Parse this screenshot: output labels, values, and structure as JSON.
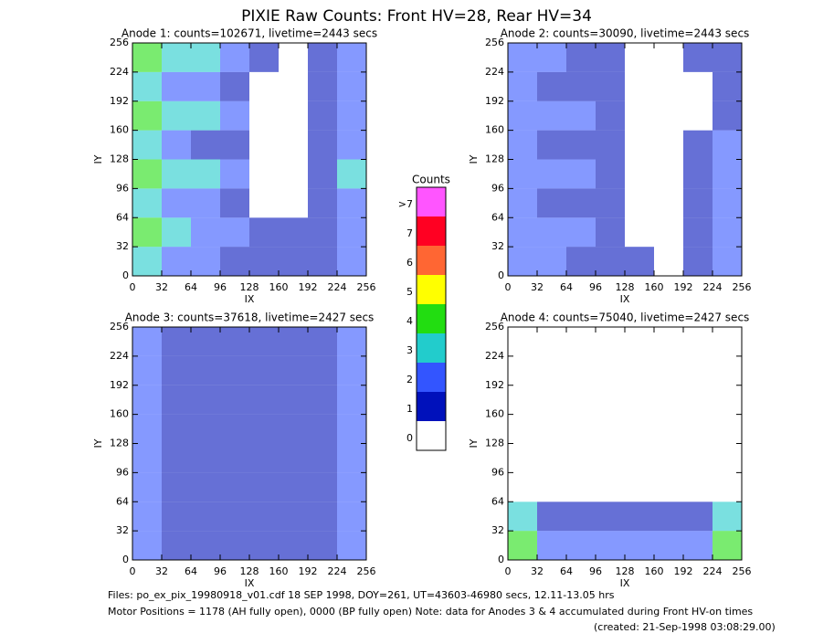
{
  "title": "PIXIE Raw Counts:  Front HV=28, Rear HV=34",
  "colorbar": {
    "title": "Counts",
    "labels": [
      "0",
      "1",
      "2",
      "3",
      "4",
      "5",
      "6",
      "7",
      ">7"
    ],
    "colors": [
      "#ffffff",
      "#0011bb",
      "#3355ff",
      "#22cccc",
      "#22dd11",
      "#ffff00",
      "#ff6633",
      "#ff0022",
      "#ff55ff"
    ]
  },
  "footer": {
    "files": "Files: po_ex_pix_19980918_v01.cdf    18 SEP 1998, DOY=261, UT=43603-46980 secs, 12.11-13.05 hrs",
    "motor": "Motor Positions = 1178 (AH fully open), 0000 (BP fully open)    Note: data for Anodes 3 & 4 accumulated during Front HV-on times",
    "created": "(created: 21-Sep-1998 03:08:29.00)"
  },
  "chart_data": [
    {
      "type": "heatmap",
      "title": "Anode 1: counts=102671, livetime=2443 secs",
      "xlabel": "IX",
      "ylabel": "IY",
      "xlim": [
        0,
        256
      ],
      "ylim": [
        0,
        256
      ],
      "xticks": [
        0,
        32,
        64,
        96,
        128,
        160,
        192,
        224,
        256
      ],
      "yticks": [
        0,
        32,
        64,
        96,
        128,
        160,
        192,
        224,
        256
      ],
      "xbins": [
        0,
        32,
        64,
        96,
        128,
        160,
        192,
        224,
        256
      ],
      "ybins": [
        0,
        32,
        64,
        96,
        128,
        160,
        192,
        224,
        256
      ],
      "values": [
        [
          3,
          2,
          2,
          1,
          1,
          1,
          1,
          2
        ],
        [
          4,
          3,
          2,
          2,
          1,
          1,
          1,
          2
        ],
        [
          3,
          2,
          2,
          1,
          0,
          0,
          1,
          2
        ],
        [
          4,
          3,
          3,
          2,
          0,
          0,
          1,
          3
        ],
        [
          3,
          2,
          1,
          1,
          0,
          0,
          1,
          2
        ],
        [
          4,
          3,
          3,
          2,
          0,
          0,
          1,
          2
        ],
        [
          3,
          2,
          2,
          1,
          0,
          0,
          1,
          2
        ],
        [
          4,
          3,
          3,
          2,
          1,
          0,
          1,
          2
        ]
      ]
    },
    {
      "type": "heatmap",
      "title": "Anode 2: counts=30090, livetime=2443 secs",
      "xlabel": "IX",
      "ylabel": "IY",
      "xlim": [
        0,
        256
      ],
      "ylim": [
        0,
        256
      ],
      "xticks": [
        0,
        32,
        64,
        96,
        128,
        160,
        192,
        224,
        256
      ],
      "yticks": [
        0,
        32,
        64,
        96,
        128,
        160,
        192,
        224,
        256
      ],
      "xbins": [
        0,
        32,
        64,
        96,
        128,
        160,
        192,
        224,
        256
      ],
      "ybins": [
        0,
        32,
        64,
        96,
        128,
        160,
        192,
        224,
        256
      ],
      "values": [
        [
          2,
          2,
          1,
          1,
          1,
          0,
          1,
          2
        ],
        [
          2,
          2,
          2,
          1,
          0,
          0,
          1,
          2
        ],
        [
          2,
          1,
          1,
          1,
          0,
          0,
          1,
          2
        ],
        [
          2,
          2,
          2,
          1,
          0,
          0,
          1,
          2
        ],
        [
          2,
          1,
          1,
          1,
          0,
          0,
          1,
          2
        ],
        [
          2,
          2,
          2,
          1,
          0,
          0,
          0,
          1
        ],
        [
          2,
          1,
          1,
          1,
          0,
          0,
          0,
          1
        ],
        [
          2,
          2,
          1,
          1,
          0,
          0,
          1,
          1
        ]
      ]
    },
    {
      "type": "heatmap",
      "title": "Anode 3: counts=37618, livetime=2427 secs",
      "xlabel": "IX",
      "ylabel": "IY",
      "xlim": [
        0,
        256
      ],
      "ylim": [
        0,
        256
      ],
      "xticks": [
        0,
        32,
        64,
        96,
        128,
        160,
        192,
        224,
        256
      ],
      "yticks": [
        0,
        32,
        64,
        96,
        128,
        160,
        192,
        224,
        256
      ],
      "xbins": [
        0,
        32,
        64,
        96,
        128,
        160,
        192,
        224,
        256
      ],
      "ybins": [
        0,
        32,
        64,
        96,
        128,
        160,
        192,
        224,
        256
      ],
      "values": [
        [
          2,
          1,
          1,
          1,
          1,
          1,
          1,
          2
        ],
        [
          2,
          1,
          1,
          1,
          1,
          1,
          1,
          2
        ],
        [
          2,
          1,
          1,
          1,
          1,
          1,
          1,
          2
        ],
        [
          2,
          1,
          1,
          1,
          1,
          1,
          1,
          2
        ],
        [
          2,
          1,
          1,
          1,
          1,
          1,
          1,
          2
        ],
        [
          2,
          1,
          1,
          1,
          1,
          1,
          1,
          2
        ],
        [
          2,
          1,
          1,
          1,
          1,
          1,
          1,
          2
        ],
        [
          2,
          1,
          1,
          1,
          1,
          1,
          1,
          2
        ]
      ]
    },
    {
      "type": "heatmap",
      "title": "Anode 4: counts=75040, livetime=2427 secs",
      "xlabel": "IX",
      "ylabel": "IY",
      "xlim": [
        0,
        256
      ],
      "ylim": [
        0,
        256
      ],
      "xticks": [
        0,
        32,
        64,
        96,
        128,
        160,
        192,
        224,
        256
      ],
      "yticks": [
        0,
        32,
        64,
        96,
        128,
        160,
        192,
        224,
        256
      ],
      "xbins": [
        0,
        32,
        64,
        96,
        128,
        160,
        192,
        224,
        256
      ],
      "ybins": [
        0,
        32,
        64,
        96,
        128,
        160,
        192,
        224,
        256
      ],
      "values": [
        [
          4,
          2,
          2,
          2,
          2,
          2,
          2,
          4
        ],
        [
          3,
          1,
          1,
          1,
          1,
          1,
          1,
          3
        ],
        [
          0,
          0,
          0,
          0,
          0,
          0,
          0,
          0
        ],
        [
          0,
          0,
          0,
          0,
          0,
          0,
          0,
          0
        ],
        [
          0,
          0,
          0,
          0,
          0,
          0,
          0,
          0
        ],
        [
          0,
          0,
          0,
          0,
          0,
          0,
          0,
          0
        ],
        [
          0,
          0,
          0,
          0,
          0,
          0,
          0,
          0
        ],
        [
          0,
          0,
          0,
          0,
          0,
          0,
          0,
          0
        ]
      ]
    }
  ]
}
